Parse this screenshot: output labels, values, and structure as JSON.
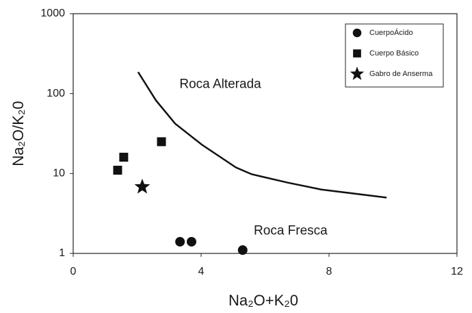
{
  "chart_data": {
    "type": "scatter",
    "x_label": "Na₂O+K₂0",
    "y_label": "Na₂O/K₂0",
    "xlim": [
      0,
      12
    ],
    "xticks": [
      0,
      4,
      8,
      12
    ],
    "ylim": [
      1,
      1000
    ],
    "yticks": [
      1,
      10,
      100,
      1000
    ],
    "y_scale": "log",
    "legend": "upper right",
    "series": [
      {
        "name": "CuerpoÁcido",
        "color": "#111111",
        "marker": "circle",
        "x": [
          3.34,
          3.7,
          5.3
        ],
        "values": [
          1.4,
          1.4,
          1.1
        ]
      },
      {
        "name": "Cuerpo Básico",
        "color": "#111111",
        "marker": "square",
        "x": [
          1.39,
          1.58,
          2.76
        ],
        "values": [
          11,
          16,
          25
        ]
      },
      {
        "name": "Gabro de Anserma",
        "color": "#111111",
        "marker": "star",
        "x": [
          2.16
        ],
        "values": [
          6.8
        ]
      }
    ],
    "boundary": {
      "color": "#111111",
      "x": [
        2.03,
        2.59,
        3.19,
        4.02,
        5.09,
        5.58,
        6.7,
        7.76,
        9.8
      ],
      "values": [
        186,
        82,
        42,
        23,
        11.9,
        9.8,
        7.7,
        6.3,
        5.0
      ]
    },
    "annotations": [
      {
        "text": "Roca Alterada",
        "x": 4.6,
        "y": 130
      },
      {
        "text": "Roca Fresca",
        "x": 6.8,
        "y": 1.9
      }
    ]
  }
}
